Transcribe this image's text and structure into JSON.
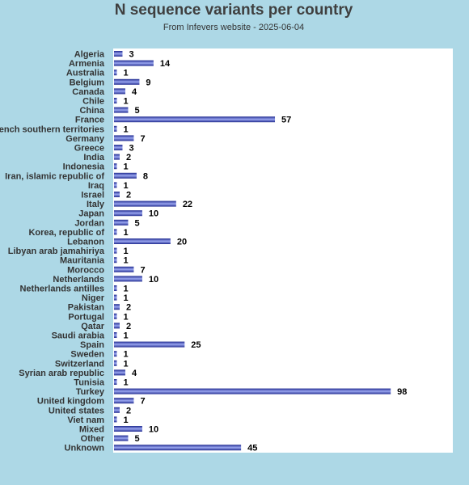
{
  "title": "N sequence variants per country",
  "subtitle": "From Infevers website - 2025-06-04",
  "chart_data": {
    "type": "bar",
    "orientation": "horizontal",
    "title": "N sequence variants per country",
    "subtitle": "From Infevers website - 2025-06-04",
    "xlabel": "",
    "ylabel": "",
    "xlim": [
      0,
      120
    ],
    "grid": false,
    "bar_color": "#3f48cc",
    "plot_background": "#ffffff",
    "page_background": "#add8e6",
    "categories": [
      "Algeria",
      "Armenia",
      "Australia",
      "Belgium",
      "Canada",
      "Chile",
      "China",
      "France",
      "French southern territories",
      "Germany",
      "Greece",
      "India",
      "Indonesia",
      "Iran, islamic republic of",
      "Iraq",
      "Israel",
      "Italy",
      "Japan",
      "Jordan",
      "Korea, republic of",
      "Lebanon",
      "Libyan arab jamahiriya",
      "Mauritania",
      "Morocco",
      "Netherlands",
      "Netherlands antilles",
      "Niger",
      "Pakistan",
      "Portugal",
      "Qatar",
      "Saudi arabia",
      "Spain",
      "Sweden",
      "Switzerland",
      "Syrian arab republic",
      "Tunisia",
      "Turkey",
      "United kingdom",
      "United states",
      "Viet nam",
      "Mixed",
      "Other",
      "Unknown"
    ],
    "values": [
      3,
      14,
      1,
      9,
      4,
      1,
      5,
      57,
      1,
      7,
      3,
      2,
      1,
      8,
      1,
      2,
      22,
      10,
      5,
      1,
      20,
      1,
      1,
      7,
      10,
      1,
      1,
      2,
      1,
      2,
      1,
      25,
      1,
      1,
      4,
      1,
      98,
      7,
      2,
      1,
      10,
      5,
      45
    ]
  }
}
